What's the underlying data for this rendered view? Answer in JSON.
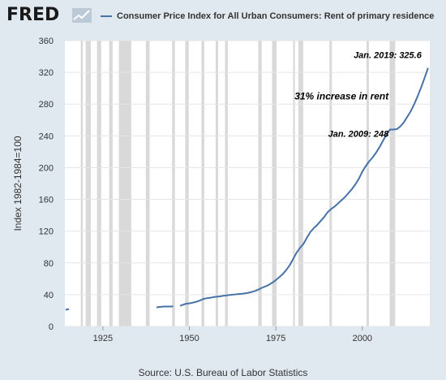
{
  "header": {
    "logo_text": "FRED",
    "legend_label": "Consumer Price Index for All Urban Consumers: Rent of primary residence"
  },
  "source_text": "Source: U.S. Bureau of Labor Statistics",
  "colors": {
    "line": "#4572a7",
    "recession": "#d9d9d9",
    "background": "#e1e9f0",
    "plot": "#ffffff"
  },
  "chart_data": {
    "type": "line",
    "title": "",
    "xlabel": "",
    "ylabel": "Index 1982-1984=100",
    "xlim": [
      1914,
      2019.5
    ],
    "ylim": [
      0,
      360
    ],
    "yticks": [
      0,
      40,
      80,
      120,
      160,
      200,
      240,
      280,
      320,
      360
    ],
    "xticks": [
      1925,
      1950,
      1975,
      2000
    ],
    "grid": true,
    "legend": "top",
    "recessions": [
      [
        1918.6,
        1919.2
      ],
      [
        1920.0,
        1921.5
      ],
      [
        1923.3,
        1924.5
      ],
      [
        1926.8,
        1927.8
      ],
      [
        1929.6,
        1933.2
      ],
      [
        1937.4,
        1938.5
      ],
      [
        1945.0,
        1945.8
      ],
      [
        1948.8,
        1949.8
      ],
      [
        1953.5,
        1954.3
      ],
      [
        1957.6,
        1958.3
      ],
      [
        1960.3,
        1961.1
      ],
      [
        1969.9,
        1970.9
      ],
      [
        1973.9,
        1975.2
      ],
      [
        1980.0,
        1980.5
      ],
      [
        1981.5,
        1982.9
      ],
      [
        1990.5,
        1991.2
      ],
      [
        2001.2,
        2001.9
      ],
      [
        2007.9,
        2009.5
      ]
    ],
    "series": [
      {
        "segments": [
          [
            [
              1914.2,
              21
            ],
            [
              1914.8,
              21.5
            ],
            [
              1915.2,
              21.8
            ]
          ],
          [
            [
              1940.5,
              24
            ],
            [
              1941.5,
              24.5
            ],
            [
              1942.5,
              25
            ],
            [
              1943.5,
              25
            ],
            [
              1944.5,
              25
            ],
            [
              1945.3,
              25.2
            ]
          ],
          [
            [
              1947.3,
              26
            ],
            [
              1948,
              27
            ],
            [
              1949,
              28.5
            ],
            [
              1950,
              29
            ],
            [
              1951,
              30
            ],
            [
              1952,
              31
            ],
            [
              1953,
              32.5
            ],
            [
              1954,
              34.5
            ],
            [
              1955,
              35.5
            ],
            [
              1956,
              36
            ],
            [
              1957,
              37
            ],
            [
              1958,
              37.5
            ],
            [
              1959,
              38
            ],
            [
              1960,
              38.7
            ],
            [
              1961,
              39.2
            ],
            [
              1962,
              39.8
            ],
            [
              1963,
              40.2
            ],
            [
              1964,
              40.6
            ],
            [
              1965,
              41
            ],
            [
              1966,
              41.6
            ],
            [
              1967,
              42.3
            ],
            [
              1968,
              43.3
            ],
            [
              1969,
              44.7
            ],
            [
              1970,
              46.5
            ],
            [
              1971,
              48.7
            ],
            [
              1972,
              50.4
            ],
            [
              1973,
              52.5
            ],
            [
              1974,
              55.2
            ],
            [
              1975,
              58.4
            ],
            [
              1976,
              62
            ],
            [
              1977,
              66
            ],
            [
              1978,
              71
            ],
            [
              1979,
              77
            ],
            [
              1980,
              85
            ],
            [
              1981,
              93
            ],
            [
              1982,
              99
            ],
            [
              1983,
              104
            ],
            [
              1984,
              112
            ],
            [
              1985,
              119
            ],
            [
              1986,
              124
            ],
            [
              1987,
              128
            ],
            [
              1988,
              133
            ],
            [
              1989,
              138
            ],
            [
              1990,
              144
            ],
            [
              1991,
              148
            ],
            [
              1992,
              151
            ],
            [
              1993,
              155
            ],
            [
              1994,
              159
            ],
            [
              1995,
              163
            ],
            [
              1996,
              168
            ],
            [
              1997,
              173
            ],
            [
              1998,
              179
            ],
            [
              1999,
              186
            ],
            [
              2000,
              195
            ],
            [
              2001,
              202
            ],
            [
              2002,
              208
            ],
            [
              2003,
              213
            ],
            [
              2004,
              219
            ],
            [
              2005,
              226
            ],
            [
              2006,
              234
            ],
            [
              2007,
              242
            ],
            [
              2008,
              248
            ],
            [
              2009,
              248
            ],
            [
              2010,
              248.5
            ],
            [
              2011,
              252
            ],
            [
              2012,
              257
            ],
            [
              2013,
              264
            ],
            [
              2014,
              271
            ],
            [
              2015,
              280
            ],
            [
              2016,
              290
            ],
            [
              2017,
              301
            ],
            [
              2018,
              313
            ],
            [
              2019,
              325.6
            ]
          ]
        ]
      }
    ],
    "annotations": [
      {
        "text": "Jan. 2019: 325.6",
        "x": 2019,
        "y": 325.6
      },
      {
        "text": "Jan. 2009: 248",
        "x": 2009,
        "y": 248
      },
      {
        "text": "31% increase in rent",
        "x": 1994,
        "y": 290
      }
    ]
  }
}
